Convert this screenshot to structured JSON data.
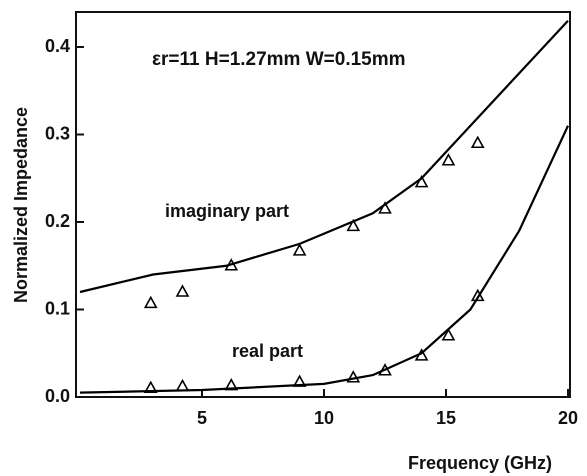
{
  "chart_data": {
    "type": "line",
    "xlabel": "Frequency  (GHz)",
    "ylabel": "Normalized Impedance",
    "annotation": "εr=11  H=1.27mm  W=0.15mm",
    "xlim": [
      0,
      20
    ],
    "ylim": [
      0,
      0.44
    ],
    "xticks": [
      5,
      10,
      15,
      20
    ],
    "yticks": [
      {
        "value": 0,
        "label": "0.0"
      },
      0.1,
      0.2,
      0.3,
      0.4
    ],
    "series": [
      {
        "name": "imaginary part",
        "style": "line",
        "color": "#000000",
        "x": [
          0,
          3,
          6,
          9,
          12,
          14,
          16,
          18,
          20
        ],
        "values": [
          0.12,
          0.14,
          0.15,
          0.175,
          0.21,
          0.25,
          0.31,
          0.37,
          0.43
        ]
      },
      {
        "name": "real part",
        "style": "line",
        "color": "#000000",
        "x": [
          0,
          5,
          10,
          12,
          14,
          16,
          18,
          20
        ],
        "values": [
          0.005,
          0.008,
          0.015,
          0.025,
          0.05,
          0.1,
          0.19,
          0.31
        ]
      },
      {
        "style": "marker",
        "color": "#000000",
        "x": [
          2.9,
          4.2,
          6.2,
          9.0,
          11.2,
          12.5,
          14.0,
          15.1,
          16.3
        ],
        "values": [
          0.107,
          0.12,
          0.15,
          0.167,
          0.195,
          0.215,
          0.245,
          0.27,
          0.29
        ]
      },
      {
        "style": "marker",
        "color": "#000000",
        "x": [
          2.9,
          4.2,
          6.2,
          9.0,
          11.2,
          12.5,
          14.0,
          15.1,
          16.3
        ],
        "values": [
          0.01,
          0.012,
          0.013,
          0.017,
          0.022,
          0.03,
          0.047,
          0.07,
          0.115
        ]
      }
    ]
  }
}
